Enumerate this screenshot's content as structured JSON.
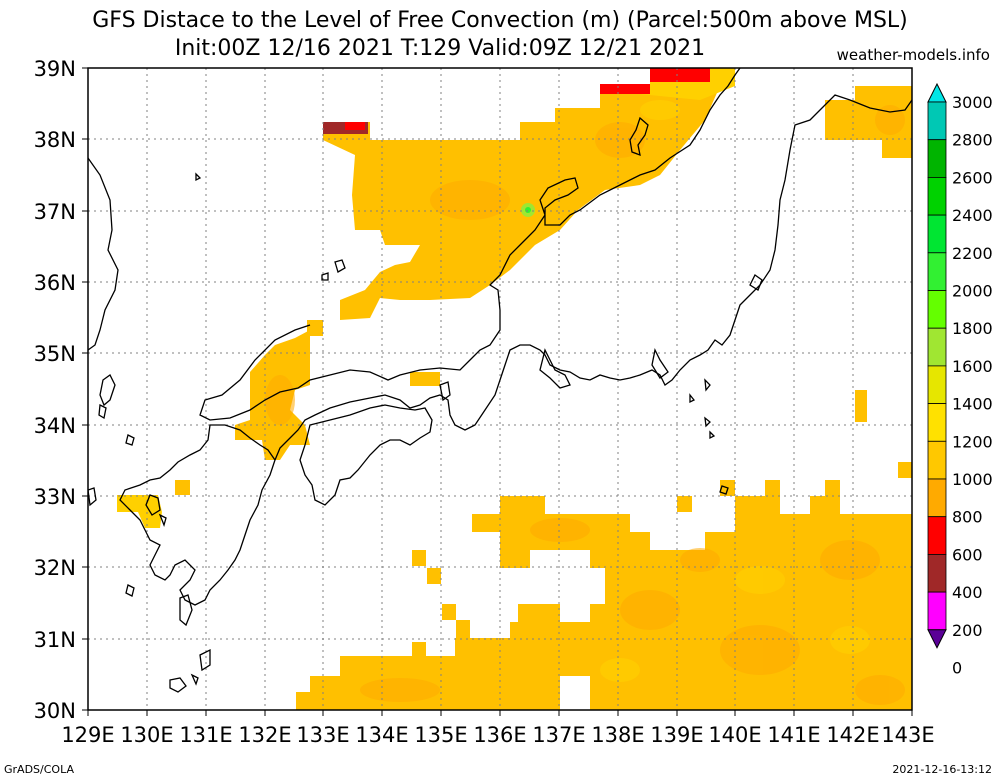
{
  "title_line1": "GFS Distace to the Level of Free Convection (m) (Parcel:500m above MSL)",
  "title_line2": "Init:00Z 12/16 2021 T:129 Valid:09Z 12/21 2021",
  "site": "weather-models.info",
  "footer_left": "GrADS/COLA",
  "footer_right": "2021-12-16-13:12",
  "map": {
    "lon_labels": [
      "129E",
      "130E",
      "131E",
      "132E",
      "133E",
      "134E",
      "135E",
      "136E",
      "137E",
      "138E",
      "139E",
      "140E",
      "141E",
      "142E",
      "143E"
    ],
    "lat_labels": [
      "39N",
      "38N",
      "37N",
      "36N",
      "35N",
      "34N",
      "33N",
      "32N",
      "31N",
      "30N"
    ]
  },
  "colorbar": {
    "labels": [
      "3000",
      "2800",
      "2600",
      "2400",
      "2200",
      "2000",
      "1800",
      "1600",
      "1400",
      "1200",
      "1000",
      "800",
      "600",
      "400",
      "200",
      "0"
    ],
    "colors": [
      "#00e6e6",
      "#00c8b4",
      "#00b400",
      "#00d200",
      "#00e632",
      "#32f032",
      "#64ff00",
      "#a0e632",
      "#e6e600",
      "#ffe100",
      "#ffc800",
      "#ffaa00",
      "#ff0000",
      "#a02828",
      "#ff00ff",
      "#5a0096"
    ]
  }
}
